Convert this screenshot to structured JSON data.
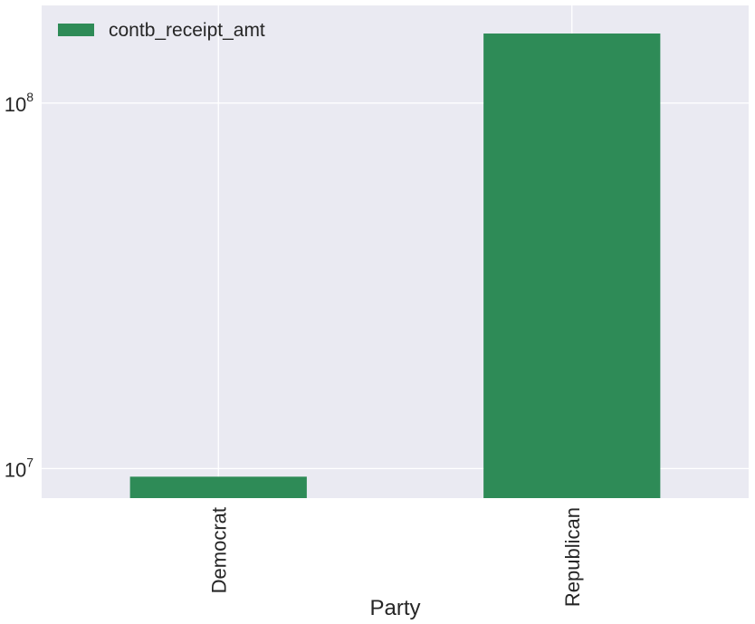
{
  "chart_data": {
    "type": "bar",
    "yscale": "log",
    "categories": [
      "Democrat",
      "Republican"
    ],
    "series": [
      {
        "name": "contb_receipt_amt",
        "values": [
          9500000,
          155000000
        ],
        "color": "#2e8b57"
      }
    ],
    "title": "",
    "xlabel": "Party",
    "ylabel": "",
    "ylim": [
      8300000,
      185000000
    ],
    "yticks": [
      {
        "value": 10000000,
        "base": "10",
        "exponent": "7"
      },
      {
        "value": 100000000,
        "base": "10",
        "exponent": "8"
      }
    ],
    "grid": true,
    "legend_position": "top-left",
    "background": "#eaeaf2",
    "gridline_color": "#ffffff"
  }
}
